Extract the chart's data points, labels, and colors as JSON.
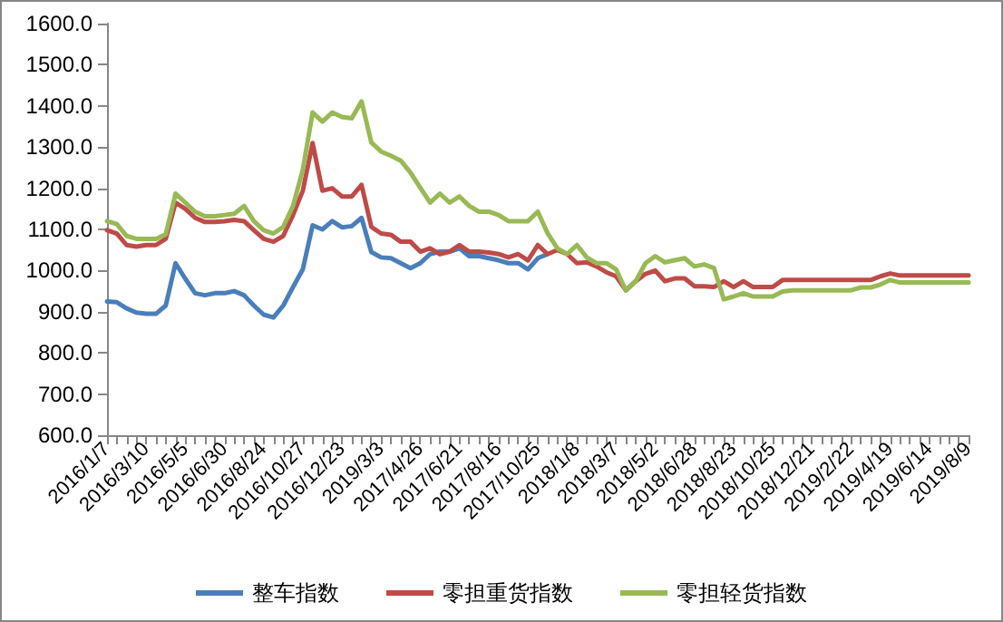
{
  "chart_data": {
    "type": "line",
    "categories": [
      "2016/1/7",
      null,
      null,
      null,
      "2016/3/10",
      null,
      null,
      null,
      "2016/5/5",
      null,
      null,
      null,
      "2016/6/30",
      null,
      null,
      null,
      "2016/8/24",
      null,
      null,
      null,
      "2016/10/27",
      null,
      null,
      null,
      "2016/12/23",
      null,
      null,
      null,
      "2019/3/3",
      null,
      null,
      null,
      "2017/4/26",
      null,
      null,
      null,
      "2017/6/21",
      null,
      null,
      null,
      "2017/8/16",
      null,
      null,
      null,
      "2017/10/25",
      null,
      null,
      null,
      "2018/1/8",
      null,
      null,
      null,
      "2018/3/7",
      null,
      null,
      null,
      "2018/5/2",
      null,
      null,
      null,
      "2018/6/28",
      null,
      null,
      null,
      "2018/8/23",
      null,
      null,
      null,
      "2018/10/25",
      null,
      null,
      null,
      "2018/12/21",
      null,
      null,
      null,
      "2019/2/22",
      null,
      null,
      null,
      "2019/4/19",
      null,
      null,
      null,
      "2019/6/14",
      null,
      null,
      null,
      "2019/8/9"
    ],
    "series": [
      {
        "name": "整车指数",
        "color": "#4a7ebb",
        "values": [
          925,
          923,
          908,
          898,
          895,
          895,
          915,
          1018,
          980,
          945,
          940,
          945,
          945,
          950,
          940,
          915,
          893,
          886,
          915,
          960,
          1003,
          1110,
          1100,
          1120,
          1105,
          1108,
          1128,
          1045,
          1032,
          1030,
          1018,
          1006,
          1018,
          1040,
          1046,
          1046,
          1054,
          1035,
          1035,
          1030,
          1025,
          1018,
          1018,
          1003,
          1030,
          1040,
          null,
          null,
          null,
          null,
          null,
          null,
          null,
          null,
          null,
          null,
          null,
          null,
          null,
          null,
          null,
          null,
          null,
          null,
          null,
          null,
          null,
          null,
          null,
          null,
          null,
          null,
          null,
          null,
          null,
          null,
          null,
          null,
          null,
          null,
          null,
          null,
          null,
          null,
          null,
          null,
          null,
          null,
          null
        ]
      },
      {
        "name": "零担重货指数",
        "color": "#be4b48",
        "values": [
          1098,
          1090,
          1062,
          1058,
          1062,
          1062,
          1077,
          1165,
          1150,
          1128,
          1118,
          1118,
          1120,
          1123,
          1120,
          1098,
          1077,
          1070,
          1084,
          1135,
          1194,
          1310,
          1194,
          1200,
          1180,
          1180,
          1208,
          1106,
          1090,
          1087,
          1070,
          1070,
          1046,
          1054,
          1040,
          1046,
          1062,
          1046,
          1046,
          1044,
          1040,
          1032,
          1040,
          1025,
          1062,
          1040,
          1050,
          1040,
          1018,
          1020,
          1010,
          996,
          986,
          952,
          974,
          992,
          1000,
          974,
          981,
          981,
          962,
          962,
          960,
          974,
          960,
          974,
          960,
          960,
          960,
          977,
          977,
          977,
          977,
          977,
          977,
          977,
          977,
          977,
          977,
          986,
          993,
          988,
          988,
          988,
          988,
          988,
          988,
          988,
          988
        ]
      },
      {
        "name": "零担轻货指数",
        "color": "#98b954",
        "values": [
          1120,
          1113,
          1084,
          1077,
          1077,
          1077,
          1088,
          1187,
          1165,
          1143,
          1132,
          1132,
          1135,
          1138,
          1157,
          1120,
          1098,
          1090,
          1106,
          1157,
          1245,
          1384,
          1362,
          1384,
          1373,
          1370,
          1411,
          1311,
          1289,
          1279,
          1267,
          1238,
          1201,
          1165,
          1187,
          1165,
          1180,
          1157,
          1143,
          1143,
          1135,
          1120,
          1120,
          1120,
          1143,
          1091,
          1054,
          1040,
          1062,
          1032,
          1018,
          1018,
          1003,
          952,
          974,
          1018,
          1035,
          1020,
          1025,
          1030,
          1010,
          1015,
          1006,
          930,
          937,
          945,
          937,
          937,
          937,
          949,
          952,
          952,
          952,
          952,
          952,
          952,
          952,
          959,
          959,
          966,
          977,
          971,
          971,
          971,
          971,
          971,
          971,
          971,
          971
        ]
      }
    ],
    "ylim": [
      600,
      1600
    ],
    "yticks": [
      {
        "value": 600,
        "label": "600.0"
      },
      {
        "value": 700,
        "label": "700.0"
      },
      {
        "value": 800,
        "label": "800.0"
      },
      {
        "value": 900,
        "label": "900.0"
      },
      {
        "value": 1000,
        "label": "1000.0"
      },
      {
        "value": 1100,
        "label": "1100.0"
      },
      {
        "value": 1200,
        "label": "1200.0"
      },
      {
        "value": 1300,
        "label": "1300.0"
      },
      {
        "value": 1400,
        "label": "1400.0"
      },
      {
        "value": 1500,
        "label": "1500.0"
      },
      {
        "value": 1600,
        "label": "1600.0"
      }
    ],
    "grid": false,
    "legend": "bottom",
    "marker": "none",
    "line_style": "solid"
  }
}
